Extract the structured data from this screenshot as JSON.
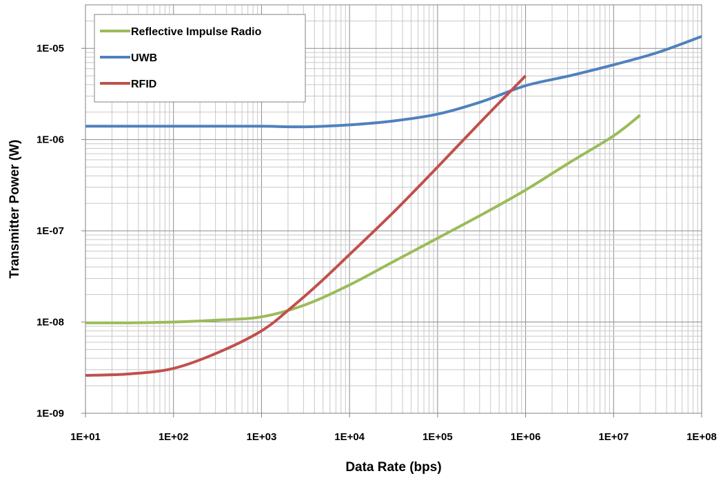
{
  "chart_data": {
    "type": "line",
    "title": "",
    "xlabel": "Data Rate (bps)",
    "ylabel": "Transmitter Power (W)",
    "x_scale": "log",
    "y_scale": "log",
    "xlim": [
      10,
      100000000
    ],
    "ylim": [
      1e-09,
      3e-05
    ],
    "x_tick_labels": [
      "1E+01",
      "1E+02",
      "1E+03",
      "1E+04",
      "1E+05",
      "1E+06",
      "1E+07",
      "1E+08"
    ],
    "y_tick_labels": [
      "1E-09",
      "1E-08",
      "1E-07",
      "1E-06",
      "1E-05"
    ],
    "grid": "major and minor, both axes",
    "legend": "top-left",
    "series": [
      {
        "name": "Reflective Impulse Radio",
        "color": "#9bbb59",
        "x": [
          10,
          31.6,
          100,
          316,
          1000,
          3160,
          10000,
          31600,
          100000,
          316000,
          1000000,
          3160000,
          10000000,
          20000000
        ],
        "y": [
          9.8e-09,
          9.8e-09,
          1e-08,
          1.05e-08,
          1.14e-08,
          1.55e-08,
          2.55e-08,
          4.6e-08,
          8.3e-08,
          1.5e-07,
          2.8e-07,
          5.6e-07,
          1.1e-06,
          1.85e-06
        ]
      },
      {
        "name": "UWB",
        "color": "#4f81bd",
        "x": [
          10,
          31.6,
          100,
          316,
          1000,
          3160,
          10000,
          31600,
          100000,
          316000,
          1000000,
          3160000,
          10000000,
          31600000,
          100000000
        ],
        "y": [
          1.4e-06,
          1.4e-06,
          1.4e-06,
          1.4e-06,
          1.4e-06,
          1.38e-06,
          1.45e-06,
          1.6e-06,
          1.9e-06,
          2.6e-06,
          3.9e-06,
          5e-06,
          6.6e-06,
          9e-06,
          1.35e-05
        ]
      },
      {
        "name": "RFID",
        "color": "#c0504d",
        "x": [
          10,
          31.6,
          100,
          316,
          1000,
          2200,
          4600,
          10000,
          31600,
          100000,
          316000,
          1000000
        ],
        "y": [
          2.6e-09,
          2.7e-09,
          3.1e-09,
          4.6e-09,
          8e-09,
          1.45e-08,
          2.7e-08,
          5.5e-08,
          1.6e-07,
          5e-07,
          1.6e-06,
          5e-06
        ]
      }
    ]
  }
}
